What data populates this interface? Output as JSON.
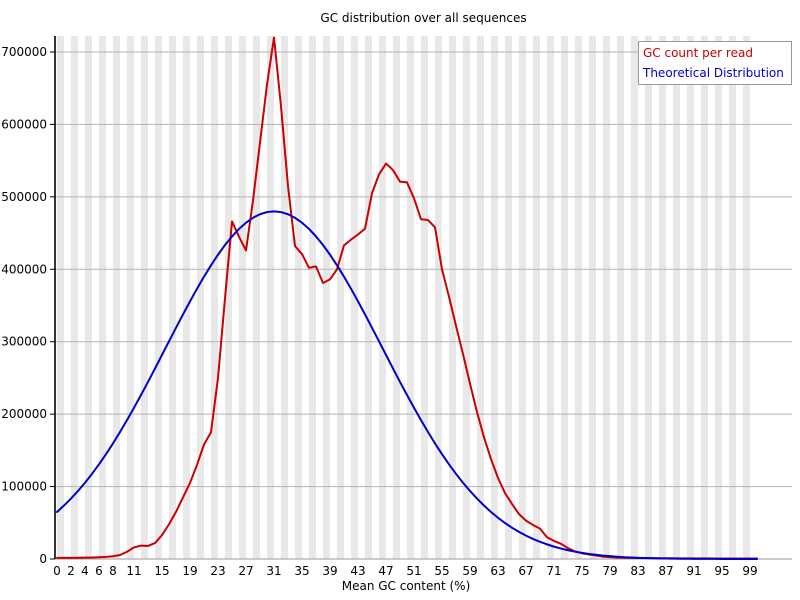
{
  "chart_data": {
    "type": "line",
    "title": "GC distribution over all sequences",
    "xlabel": "Mean GC content (%)",
    "ylabel": "",
    "xlim": [
      0,
      100
    ],
    "ylim": [
      0,
      735000
    ],
    "y_ticks": [
      0,
      100000,
      200000,
      300000,
      400000,
      500000,
      600000,
      700000
    ],
    "x_tick_labels": [
      0,
      2,
      4,
      6,
      8,
      11,
      15,
      19,
      23,
      27,
      31,
      35,
      39,
      43,
      47,
      51,
      55,
      59,
      63,
      67,
      71,
      75,
      79,
      83,
      87,
      91,
      95,
      99
    ],
    "grid": "horizontal gridlines on, vertical light-gray background stripes every 2 GC units",
    "legend_position": "top-right",
    "x_step": 1,
    "series": [
      {
        "name": "GC count per read",
        "color": "#cc0000",
        "values": [
          1500,
          1500,
          1600,
          1700,
          1900,
          2100,
          2400,
          2900,
          3800,
          5500,
          10000,
          16000,
          18500,
          18000,
          22000,
          33000,
          48000,
          65000,
          85000,
          105000,
          130000,
          158000,
          175000,
          250000,
          360000,
          466000,
          445000,
          426000,
          495000,
          575000,
          655000,
          720000,
          625000,
          515000,
          432000,
          421000,
          402000,
          404000,
          381000,
          386000,
          400000,
          433000,
          441000,
          448000,
          456000,
          505000,
          531000,
          546000,
          537000,
          521000,
          520000,
          498000,
          469000,
          468000,
          458000,
          400000,
          362000,
          322000,
          283000,
          242000,
          203000,
          168000,
          138000,
          112000,
          91000,
          76000,
          62000,
          53000,
          47000,
          42000,
          30000,
          25000,
          21000,
          15000,
          10500,
          8000,
          6200,
          4800,
          3200,
          2600,
          2100,
          1800,
          1600,
          1400,
          1300,
          1200,
          1100,
          1000,
          950,
          900,
          870,
          840,
          810,
          780,
          760,
          740,
          720,
          700,
          690,
          680,
          670
        ]
      },
      {
        "name": "Theoretical Distribution",
        "color": "#0000cc",
        "values": [
          64900,
          73800,
          83400,
          93900,
          105300,
          117600,
          130700,
          144700,
          159600,
          175300,
          191700,
          208800,
          226400,
          244500,
          263000,
          281800,
          300500,
          319200,
          337700,
          355700,
          373200,
          389800,
          405500,
          420100,
          433500,
          445300,
          455700,
          464300,
          471100,
          476000,
          479000,
          480000,
          479000,
          476000,
          471100,
          464300,
          455700,
          445300,
          433500,
          420100,
          405500,
          389800,
          373200,
          355700,
          337700,
          319200,
          300500,
          281800,
          263000,
          244500,
          226400,
          208800,
          191700,
          175300,
          159600,
          144700,
          130700,
          117600,
          105300,
          93900,
          83400,
          73800,
          64900,
          56900,
          49700,
          43200,
          37400,
          32300,
          27700,
          23700,
          20200,
          17100,
          14400,
          12100,
          10100,
          8400,
          7000,
          5800,
          4700,
          3900,
          3100,
          2500,
          2000,
          1600,
          1300,
          1000,
          800,
          640,
          500,
          390,
          300,
          230,
          180,
          135,
          100,
          77,
          57,
          42,
          31,
          22,
          16
        ]
      }
    ],
    "colors": {
      "red_series": "#cc0000",
      "blue_series": "#0000cc",
      "stripe": "#e8e8e8",
      "grid": "#b3b3b3",
      "y_axis": "#000000",
      "x_axis_line": "#999999",
      "legend_border": "#999999",
      "text": "#000000"
    }
  }
}
